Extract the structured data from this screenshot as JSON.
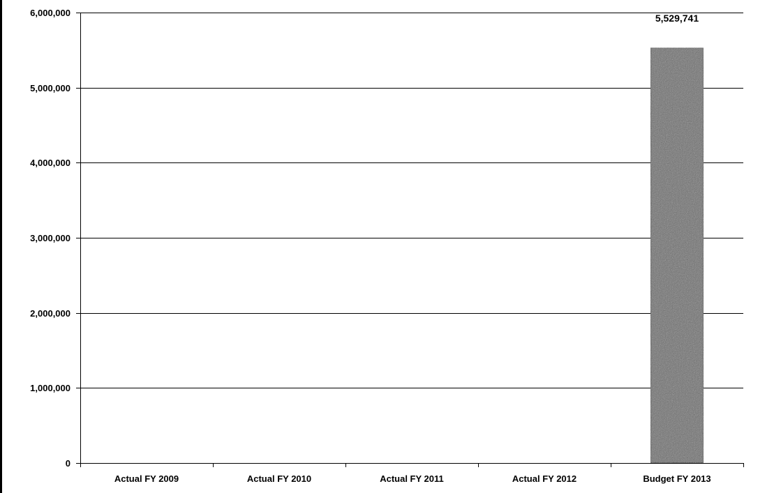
{
  "chart_data": {
    "type": "bar",
    "title": "",
    "xlabel": "",
    "ylabel": "",
    "categories": [
      "Actual FY 2009",
      "Actual FY 2010",
      "Actual FY 2011",
      "Actual FY 2012",
      "Budget FY 2013"
    ],
    "values": [
      0,
      0,
      0,
      0,
      5529741
    ],
    "data_labels": [
      "",
      "",
      "",
      "",
      "5,529,741"
    ],
    "ylim": [
      0,
      6000000
    ],
    "yticks": [
      0,
      1000000,
      2000000,
      3000000,
      4000000,
      5000000,
      6000000
    ],
    "ytick_labels": [
      "0",
      "1,000,000",
      "2,000,000",
      "3,000,000",
      "4,000,000",
      "5,000,000",
      "6,000,000"
    ],
    "grid": true,
    "legend": "none",
    "colors": {
      "bar": "#6e6e6e",
      "bar_edge": "#2a2a2a",
      "gridline": "#000000",
      "axis": "#000000",
      "frame": "#000000"
    }
  }
}
